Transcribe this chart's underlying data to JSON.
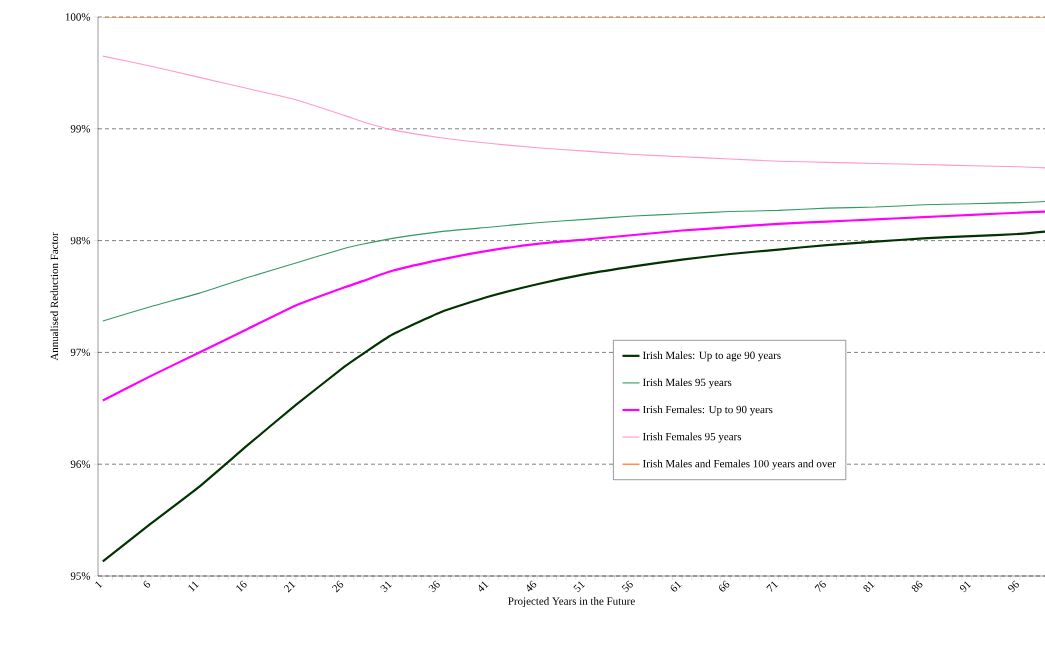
{
  "chart_data": {
    "type": "line",
    "xlabel": "Projected Years in the Future",
    "ylabel": "Annualised Reduction Factor",
    "x": [
      1,
      6,
      11,
      16,
      21,
      26,
      28,
      31,
      36,
      41,
      46,
      51,
      56,
      61,
      66,
      71,
      76,
      81,
      86,
      91,
      96,
      98.6
    ],
    "series": [
      {
        "name": "Irish Males: Up to age 90 years",
        "color": "#003300",
        "values": [
          95.13,
          95.47,
          95.8,
          96.17,
          96.53,
          96.87,
          96.99,
          97.16,
          97.36,
          97.5,
          97.61,
          97.7,
          97.77,
          97.83,
          97.88,
          97.92,
          97.96,
          97.99,
          98.02,
          98.04,
          98.06,
          98.08
        ]
      },
      {
        "name": "Irish Males 95 years",
        "color": "#339966",
        "values": [
          97.28,
          97.41,
          97.53,
          97.67,
          97.8,
          97.93,
          97.97,
          98.02,
          98.08,
          98.12,
          98.16,
          98.19,
          98.22,
          98.24,
          98.26,
          98.27,
          98.29,
          98.3,
          98.32,
          98.33,
          98.34,
          98.35
        ]
      },
      {
        "name": "Irish Females: Up to 90 years",
        "color": "#ff00ff",
        "values": [
          96.57,
          96.79,
          97.0,
          97.21,
          97.42,
          97.58,
          97.64,
          97.73,
          97.83,
          97.91,
          97.97,
          98.01,
          98.05,
          98.09,
          98.12,
          98.15,
          98.17,
          98.19,
          98.21,
          98.23,
          98.25,
          98.26
        ]
      },
      {
        "name": "Irish Females 95 years",
        "color": "#ff99cc",
        "values": [
          99.65,
          99.56,
          99.46,
          99.36,
          99.26,
          99.12,
          99.06,
          98.99,
          98.92,
          98.87,
          98.83,
          98.8,
          98.77,
          98.75,
          98.73,
          98.71,
          98.7,
          98.69,
          98.68,
          98.67,
          98.66,
          98.65
        ]
      },
      {
        "name": "Irish Males and Females 100 years and over",
        "color": "#ff6600",
        "values": [
          100,
          100,
          100,
          100,
          100,
          100,
          100,
          100,
          100,
          100,
          100,
          100,
          100,
          100,
          100,
          100,
          100,
          100,
          100,
          100,
          100,
          100
        ]
      }
    ],
    "xlim": [
      0.5,
      98.6
    ],
    "xticks": [
      1,
      6,
      11,
      16,
      21,
      26,
      31,
      36,
      41,
      46,
      51,
      56,
      61,
      66,
      71,
      76,
      81,
      86,
      91,
      96
    ],
    "ylim": [
      95,
      100
    ],
    "yticks": [
      {
        "value": 95,
        "label": "95%"
      },
      {
        "value": 96,
        "label": "96%"
      },
      {
        "value": 97,
        "label": "97%"
      },
      {
        "value": 98,
        "label": "98%"
      },
      {
        "value": 99,
        "label": "99%"
      },
      {
        "value": 100,
        "label": "100%"
      }
    ],
    "grid": "y",
    "legend": "right",
    "marker": "none",
    "line_style": "solid"
  }
}
